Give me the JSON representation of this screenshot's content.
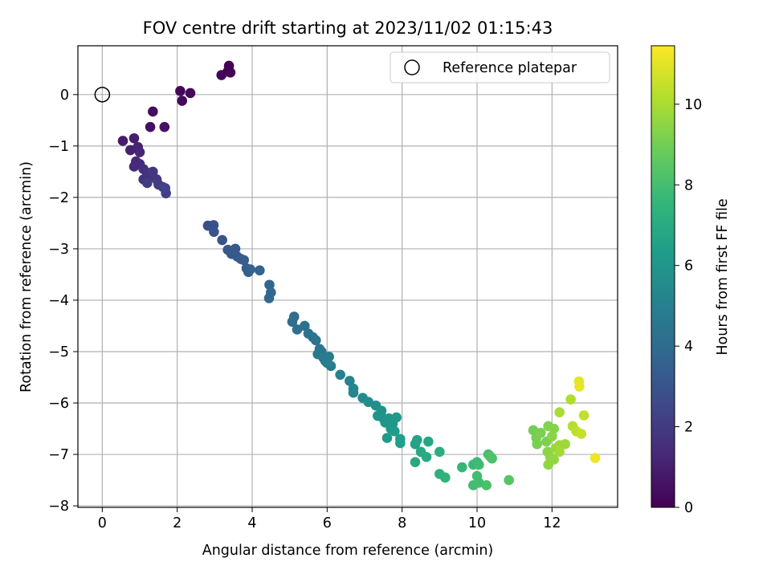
{
  "chart_data": {
    "type": "scatter",
    "title": "FOV centre drift starting at 2023/11/02 01:15:43",
    "xlabel": "Angular distance from reference (arcmin)",
    "ylabel": "Rotation from reference (arcmin)",
    "xlim": [
      -0.65,
      13.75
    ],
    "ylim": [
      -8.03,
      0.95
    ],
    "xticks": [
      0,
      2,
      4,
      6,
      8,
      10,
      12
    ],
    "yticks": [
      0,
      -1,
      -2,
      -3,
      -4,
      -5,
      -6,
      -7,
      -8
    ],
    "grid": true,
    "legend": {
      "position": "top-right",
      "entries": [
        {
          "label": "Reference platepar",
          "marker": "open-circle"
        }
      ]
    },
    "reference_point": {
      "x": 0,
      "y": 0
    },
    "colorbar": {
      "label": "Hours from first FF file",
      "colormap": "viridis",
      "range": [
        0,
        11.45
      ],
      "ticks": [
        0,
        2,
        4,
        6,
        8,
        10
      ]
    },
    "points": [
      [
        3.38,
        0.56,
        0.05
      ],
      [
        3.35,
        0.45,
        0.08
      ],
      [
        3.18,
        0.38,
        0.1
      ],
      [
        3.42,
        0.43,
        0.12
      ],
      [
        2.08,
        0.07,
        0.2
      ],
      [
        2.35,
        0.03,
        0.25
      ],
      [
        2.13,
        -0.12,
        0.3
      ],
      [
        1.35,
        -0.33,
        0.4
      ],
      [
        1.28,
        -0.63,
        0.5
      ],
      [
        1.66,
        -0.63,
        0.55
      ],
      [
        0.55,
        -0.9,
        0.8
      ],
      [
        0.85,
        -0.85,
        0.9
      ],
      [
        0.75,
        -1.08,
        1.0
      ],
      [
        0.95,
        -1.02,
        1.1
      ],
      [
        1.0,
        -1.12,
        1.2
      ],
      [
        0.9,
        -1.3,
        1.3
      ],
      [
        0.85,
        -1.4,
        1.35
      ],
      [
        1.0,
        -1.35,
        1.4
      ],
      [
        1.1,
        -1.45,
        1.5
      ],
      [
        1.2,
        -1.52,
        1.6
      ],
      [
        1.1,
        -1.65,
        1.7
      ],
      [
        1.25,
        -1.6,
        1.75
      ],
      [
        1.35,
        -1.5,
        1.8
      ],
      [
        1.45,
        -1.65,
        1.9
      ],
      [
        1.2,
        -1.72,
        2.0
      ],
      [
        1.5,
        -1.75,
        2.1
      ],
      [
        1.62,
        -1.8,
        2.2
      ],
      [
        1.7,
        -1.92,
        2.25
      ],
      [
        1.68,
        -1.82,
        2.3
      ],
      [
        2.82,
        -2.55,
        2.8
      ],
      [
        2.97,
        -2.54,
        2.9
      ],
      [
        2.98,
        -2.67,
        2.95
      ],
      [
        3.2,
        -2.83,
        3.0
      ],
      [
        3.35,
        -3.02,
        3.1
      ],
      [
        3.45,
        -3.1,
        3.15
      ],
      [
        3.55,
        -3.0,
        3.2
      ],
      [
        3.6,
        -3.15,
        3.25
      ],
      [
        3.7,
        -3.2,
        3.3
      ],
      [
        3.78,
        -3.22,
        3.35
      ],
      [
        3.85,
        -3.38,
        3.45
      ],
      [
        3.9,
        -3.45,
        3.5
      ],
      [
        3.95,
        -3.4,
        3.55
      ],
      [
        4.2,
        -3.42,
        3.65
      ],
      [
        4.46,
        -3.7,
        3.75
      ],
      [
        4.5,
        -3.85,
        3.8
      ],
      [
        4.45,
        -3.96,
        3.85
      ],
      [
        5.07,
        -4.42,
        4.0
      ],
      [
        5.12,
        -4.32,
        4.1
      ],
      [
        5.2,
        -4.57,
        4.15
      ],
      [
        5.4,
        -4.5,
        4.25
      ],
      [
        5.5,
        -4.65,
        4.3
      ],
      [
        5.62,
        -4.72,
        4.35
      ],
      [
        5.7,
        -4.78,
        4.4
      ],
      [
        5.8,
        -4.95,
        4.5
      ],
      [
        5.75,
        -5.05,
        4.55
      ],
      [
        5.85,
        -5.0,
        4.6
      ],
      [
        5.9,
        -5.12,
        4.65
      ],
      [
        5.95,
        -5.18,
        4.7
      ],
      [
        6.05,
        -5.1,
        4.75
      ],
      [
        6.1,
        -5.28,
        4.8
      ],
      [
        6.0,
        -5.22,
        4.85
      ],
      [
        6.35,
        -5.45,
        5.0
      ],
      [
        6.6,
        -5.57,
        5.2
      ],
      [
        6.7,
        -5.72,
        5.25
      ],
      [
        6.7,
        -5.8,
        5.3
      ],
      [
        6.95,
        -5.9,
        5.45
      ],
      [
        7.1,
        -5.98,
        5.55
      ],
      [
        7.3,
        -6.05,
        5.7
      ],
      [
        7.45,
        -6.15,
        5.8
      ],
      [
        7.35,
        -6.25,
        5.85
      ],
      [
        7.5,
        -6.3,
        5.9
      ],
      [
        7.55,
        -6.38,
        5.95
      ],
      [
        7.65,
        -6.3,
        6.0
      ],
      [
        7.75,
        -6.4,
        6.05
      ],
      [
        7.85,
        -6.28,
        6.1
      ],
      [
        7.7,
        -6.5,
        6.15
      ],
      [
        7.6,
        -6.68,
        6.2
      ],
      [
        7.8,
        -6.55,
        6.25
      ],
      [
        7.95,
        -6.7,
        6.35
      ],
      [
        7.95,
        -6.78,
        6.4
      ],
      [
        8.35,
        -6.8,
        6.55
      ],
      [
        8.4,
        -6.72,
        6.65
      ],
      [
        8.7,
        -6.75,
        6.75
      ],
      [
        8.5,
        -6.95,
        6.85
      ],
      [
        8.35,
        -7.15,
        6.9
      ],
      [
        8.65,
        -7.05,
        6.95
      ],
      [
        9.0,
        -6.95,
        7.1
      ],
      [
        9.0,
        -7.38,
        7.3
      ],
      [
        9.15,
        -7.45,
        7.4
      ],
      [
        9.6,
        -7.25,
        7.6
      ],
      [
        9.9,
        -7.2,
        7.7
      ],
      [
        10.0,
        -7.15,
        7.8
      ],
      [
        10.05,
        -7.2,
        7.85
      ],
      [
        9.9,
        -7.6,
        7.9
      ],
      [
        10.05,
        -7.55,
        7.95
      ],
      [
        10.0,
        -7.42,
        8.0
      ],
      [
        10.3,
        -7.0,
        8.05
      ],
      [
        10.25,
        -7.6,
        8.1
      ],
      [
        10.4,
        -7.08,
        8.15
      ],
      [
        10.35,
        -7.04,
        8.2
      ],
      [
        10.85,
        -7.5,
        8.4
      ],
      [
        11.5,
        -6.53,
        9.0
      ],
      [
        11.58,
        -6.68,
        9.05
      ],
      [
        11.6,
        -6.8,
        9.1
      ],
      [
        11.7,
        -6.58,
        9.15
      ],
      [
        11.85,
        -6.75,
        9.2
      ],
      [
        11.9,
        -6.45,
        9.3
      ],
      [
        12.05,
        -6.5,
        9.35
      ],
      [
        12.0,
        -6.65,
        9.4
      ],
      [
        11.88,
        -6.95,
        9.45
      ],
      [
        11.95,
        -7.05,
        9.5
      ],
      [
        11.9,
        -7.2,
        9.55
      ],
      [
        12.05,
        -7.1,
        9.6
      ],
      [
        12.1,
        -6.88,
        9.7
      ],
      [
        12.2,
        -6.82,
        9.75
      ],
      [
        12.35,
        -6.8,
        9.8
      ],
      [
        12.2,
        -6.95,
        9.9
      ],
      [
        12.2,
        -6.18,
        10.0
      ],
      [
        12.5,
        -5.93,
        10.1
      ],
      [
        12.55,
        -6.45,
        10.2
      ],
      [
        12.65,
        -6.55,
        10.3
      ],
      [
        12.85,
        -6.24,
        10.4
      ],
      [
        12.78,
        -6.6,
        10.5
      ],
      [
        12.72,
        -5.58,
        11.0
      ],
      [
        12.73,
        -5.68,
        11.1
      ],
      [
        13.15,
        -7.07,
        11.2
      ]
    ]
  }
}
